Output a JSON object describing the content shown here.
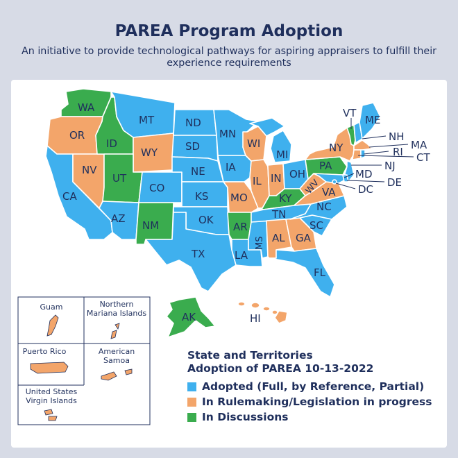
{
  "title": "PAREA Program Adoption",
  "subtitle": "An initiative to provide technological pathways for aspiring appraisers to fulfill their experience requirements",
  "colors": {
    "adopted": "#3fb0ee",
    "rulemaking": "#f3a56a",
    "discussions": "#3aac4e",
    "border": "#ffffff",
    "text": "#1f2f5c"
  },
  "legend": {
    "title_line1": "State and Territories",
    "title_line2": "Adoption of PAREA 10-13-2022",
    "items": [
      {
        "label": "Adopted (Full, by Reference, Partial)",
        "status": "adopted"
      },
      {
        "label": "In Rulemaking/Legislation in progress",
        "status": "rulemaking"
      },
      {
        "label": "In Discussions",
        "status": "discussions"
      }
    ]
  },
  "states": {
    "WA": "discussions",
    "OR": "rulemaking",
    "CA": "adopted",
    "NV": "rulemaking",
    "ID": "discussions",
    "MT": "adopted",
    "WY": "rulemaking",
    "UT": "discussions",
    "AZ": "adopted",
    "CO": "adopted",
    "NM": "discussions",
    "ND": "adopted",
    "SD": "adopted",
    "NE": "adopted",
    "KS": "adopted",
    "OK": "adopted",
    "TX": "adopted",
    "MN": "adopted",
    "IA": "adopted",
    "MO": "rulemaking",
    "AR": "discussions",
    "LA": "adopted",
    "WI": "rulemaking",
    "IL": "rulemaking",
    "MS": "adopted",
    "MI": "adopted",
    "IN": "rulemaking",
    "KY": "discussions",
    "TN": "adopted",
    "AL": "rulemaking",
    "GA": "rulemaking",
    "FL": "adopted",
    "SC": "adopted",
    "NC": "adopted",
    "VA": "rulemaking",
    "WV": "rulemaking",
    "OH": "adopted",
    "PA": "discussions",
    "NY": "rulemaking",
    "ME": "adopted",
    "VT": "discussions",
    "NH": "adopted",
    "MA": "rulemaking",
    "RI": "adopted",
    "CT": "rulemaking",
    "NJ": "adopted",
    "DE": "adopted",
    "MD": "adopted",
    "DC": "adopted",
    "AK": "discussions",
    "HI": "rulemaking"
  },
  "labels": {
    "WA": "WA",
    "OR": "OR",
    "CA": "CA",
    "NV": "NV",
    "ID": "ID",
    "MT": "MT",
    "WY": "WY",
    "UT": "UT",
    "AZ": "AZ",
    "CO": "CO",
    "NM": "NM",
    "ND": "ND",
    "SD": "SD",
    "NE": "NE",
    "KS": "KS",
    "OK": "OK",
    "TX": "TX",
    "MN": "MN",
    "IA": "IA",
    "MO": "MO",
    "AR": "AR",
    "LA": "LA",
    "WI": "WI",
    "IL": "IL",
    "MS": "MS",
    "MI": "MI",
    "IN": "IN",
    "KY": "KY",
    "TN": "TN",
    "AL": "AL",
    "GA": "GA",
    "FL": "FL",
    "SC": "SC",
    "NC": "NC",
    "VA": "VA",
    "WV": "WV",
    "OH": "OH",
    "PA": "PA",
    "NY": "NY",
    "ME": "ME",
    "VT": "VT",
    "NH": "NH",
    "MA": "MA",
    "RI": "RI",
    "CT": "CT",
    "NJ": "NJ",
    "DE": "DE",
    "MD": "MD",
    "DC": "DC",
    "AK": "AK",
    "HI": "HI"
  },
  "territories": {
    "guam": {
      "name": "Guam",
      "status": "rulemaking"
    },
    "cnmi": {
      "line1": "Northern",
      "line2": "Mariana Islands",
      "status": "rulemaking"
    },
    "pr": {
      "name": "Puerto Rico",
      "status": "rulemaking"
    },
    "as": {
      "line1": "American",
      "line2": "Samoa",
      "status": "rulemaking"
    },
    "vi": {
      "line1": "United States",
      "line2": "Virgin Islands",
      "status": "rulemaking"
    }
  }
}
